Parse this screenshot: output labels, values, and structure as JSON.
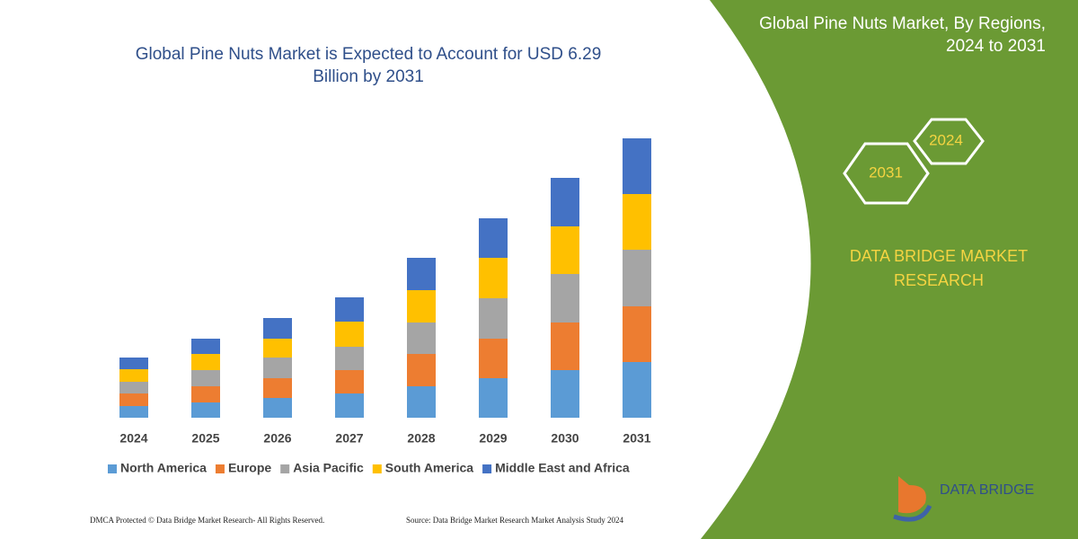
{
  "chart_data": {
    "type": "bar",
    "stacked": true,
    "title": "Global Pine Nuts Market is Expected to Account for USD 6.29 Billion by 2031",
    "categories": [
      "2024",
      "2025",
      "2026",
      "2027",
      "2028",
      "2029",
      "2030",
      "2031"
    ],
    "series": [
      {
        "name": "North America",
        "color": "#5b9bd5",
        "values": [
          13,
          17,
          22,
          27,
          35,
          44,
          53,
          62
        ]
      },
      {
        "name": "Europe",
        "color": "#ed7d31",
        "values": [
          14,
          18,
          22,
          26,
          36,
          44,
          53,
          62
        ]
      },
      {
        "name": "Asia Pacific",
        "color": "#a5a5a5",
        "values": [
          13,
          18,
          23,
          26,
          35,
          45,
          54,
          63
        ]
      },
      {
        "name": "South America",
        "color": "#ffc000",
        "values": [
          14,
          18,
          21,
          28,
          36,
          45,
          53,
          62
        ]
      },
      {
        "name": "Middle East and Africa",
        "color": "#4472c4",
        "values": [
          13,
          17,
          23,
          27,
          36,
          44,
          54,
          62
        ]
      }
    ]
  },
  "panel": {
    "title": "Global Pine Nuts Market, By Regions, 2024 to 2031",
    "badges": [
      "2024",
      "2031"
    ],
    "brand": "DATA BRIDGE MARKET RESEARCH",
    "logo": "DATA BRIDGE"
  },
  "footer": {
    "left": "DMCA Protected © Data Bridge Market Research-  All Rights Reserved.",
    "right": "Source: Data Bridge Market Research  Market Analysis Study 2024"
  }
}
